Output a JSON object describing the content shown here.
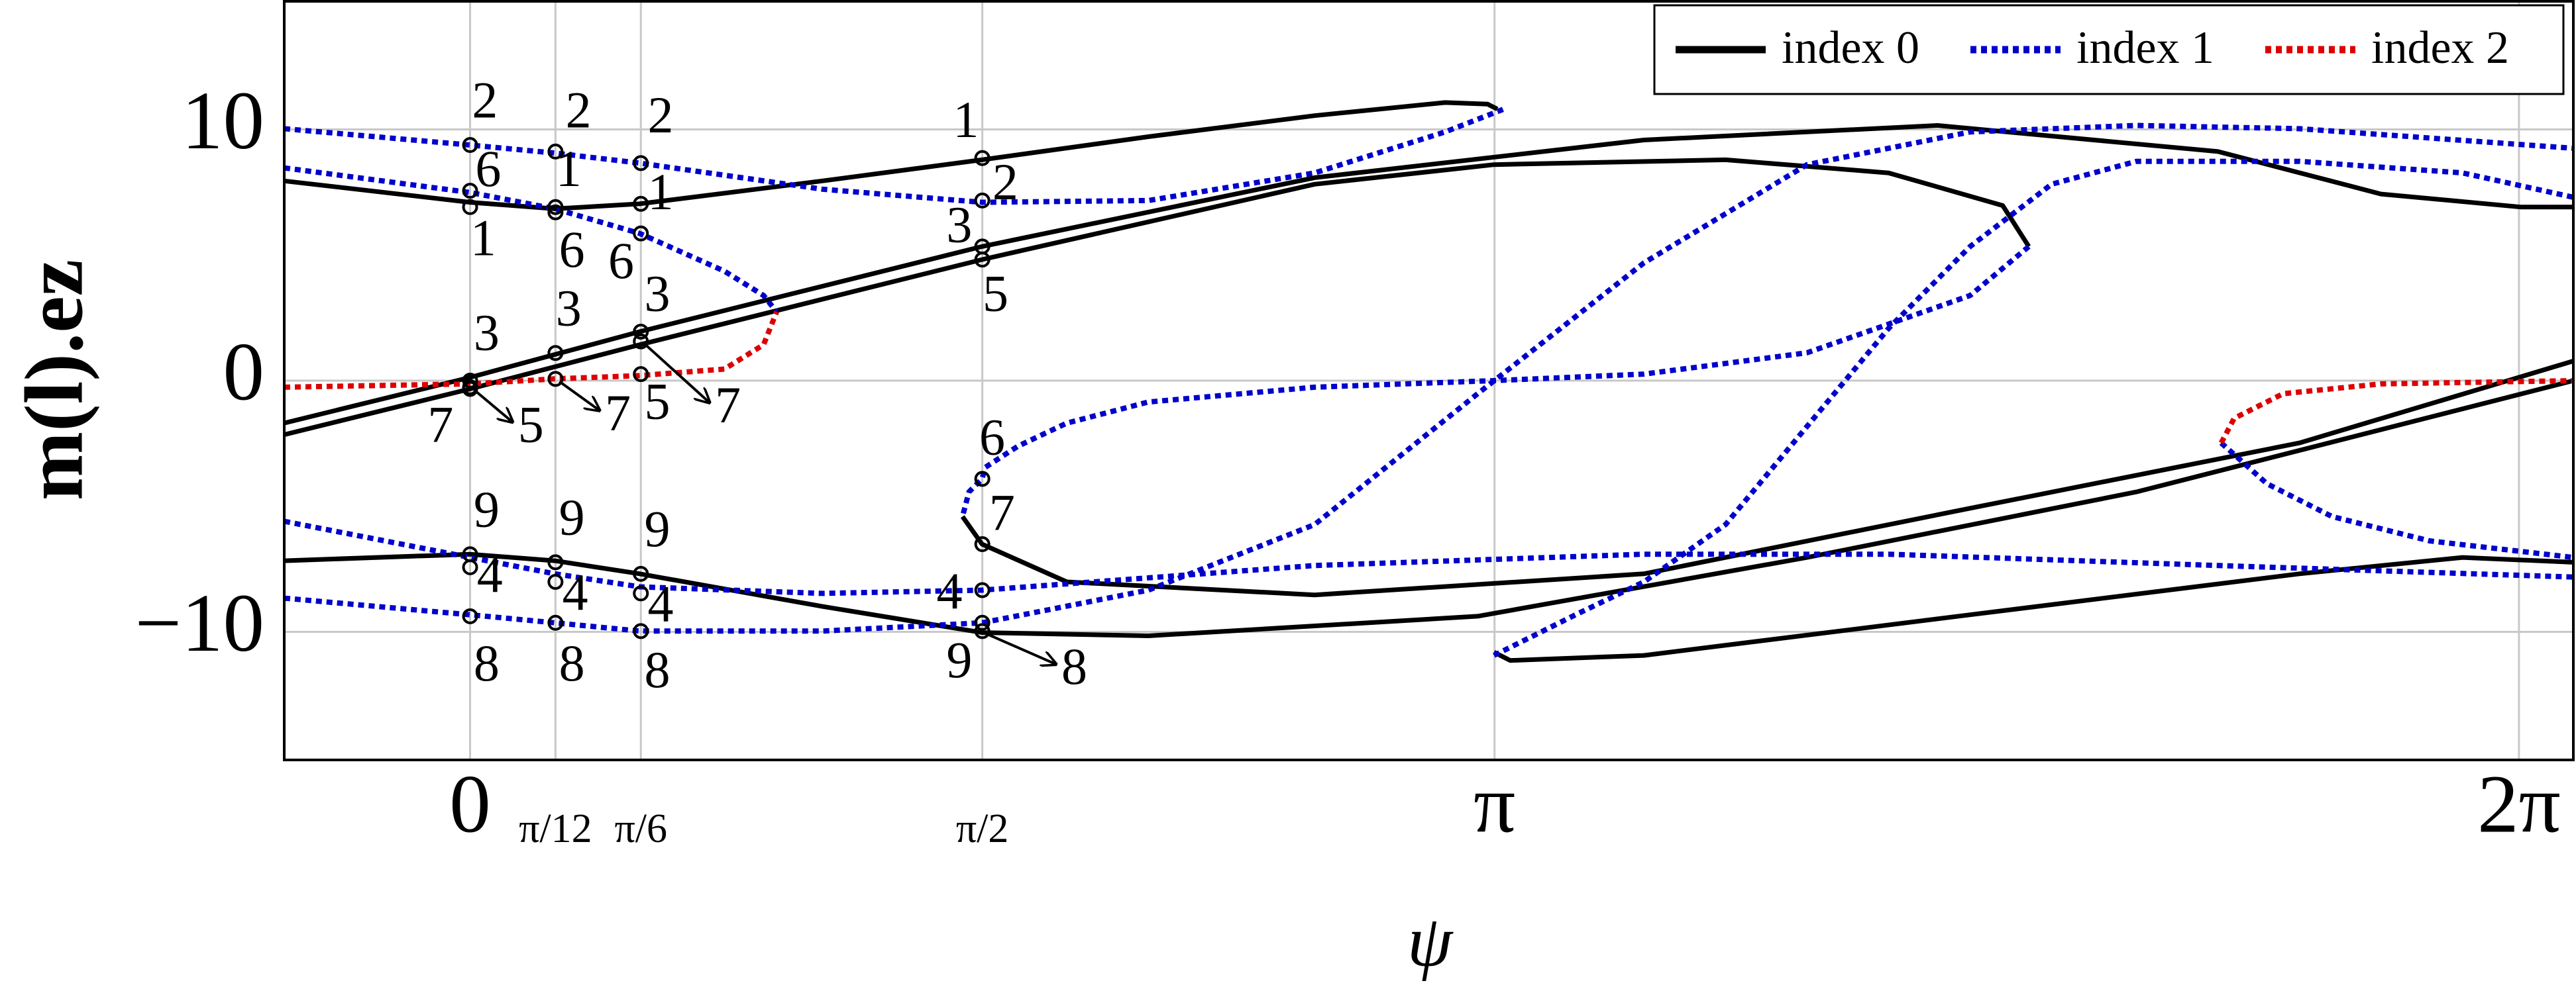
{
  "chart_data": {
    "type": "line",
    "xlabel": "ψ",
    "ylabel": "m(l).ez",
    "xlim": [
      -0.57,
      6.45
    ],
    "ylim": [
      -15.1,
      15.1
    ],
    "xticks": [
      0,
      {
        "value": 0.2618,
        "label": "π/12"
      },
      {
        "value": 0.5236,
        "label": "π/6"
      },
      {
        "value": 1.5708,
        "label": "π/2"
      },
      {
        "value": 3.1416,
        "label": "π"
      },
      {
        "value": 6.2832,
        "label": "2π"
      }
    ],
    "yticks": [
      {
        "value": -10,
        "label": "−10"
      },
      0,
      10
    ],
    "grid": true,
    "legend": "upper right",
    "series": [
      {
        "name": "index 0",
        "color": "#000000",
        "style": "solid",
        "curves": [
          {
            "x": [
              -0.57,
              0,
              0.26,
              0.52,
              1.08,
              1.57,
              2.08,
              2.59,
              2.99,
              3.12,
              3.15
            ],
            "values": [
              7.95,
              7.1,
              6.84,
              7.04,
              7.95,
              8.79,
              9.71,
              10.55,
              11.07,
              11.01,
              10.81
            ]
          },
          {
            "x": [
              -0.57,
              0,
              0.52,
              1.57,
              2.59,
              3.6,
              4.5,
              5.36,
              5.86,
              6.29,
              6.45
            ],
            "values": [
              -1.69,
              0.13,
              1.95,
              5.34,
              8.08,
              9.58,
              10.16,
              9.12,
              7.43,
              6.91,
              6.91
            ]
          },
          {
            "x": [
              -0.57,
              0,
              0.52,
              1.57,
              2.59,
              3.14,
              3.85,
              4.35,
              4.7,
              4.78
            ],
            "values": [
              -2.15,
              -0.33,
              1.43,
              4.82,
              7.82,
              8.6,
              8.79,
              8.27,
              6.97,
              5.34
            ]
          },
          {
            "x": [
              -0.57,
              0,
              0.26,
              0.52,
              1.08,
              1.57,
              2.08,
              3.09,
              4.1,
              5.11,
              6.45
            ],
            "values": [
              -7.17,
              -6.91,
              -7.17,
              -7.69,
              -8.99,
              -10.03,
              -10.16,
              -9.38,
              -7.04,
              -4.43,
              0
            ]
          },
          {
            "x": [
              1.51,
              1.57,
              1.83,
              2.59,
              3.6,
              4.6,
              5.61,
              6.45
            ],
            "values": [
              -5.41,
              -6.51,
              -8.01,
              -8.53,
              -7.69,
              -5.08,
              -2.48,
              0.78
            ]
          },
          {
            "x": [
              3.14,
              3.19,
              3.6,
              4.6,
              5.61,
              6.11,
              6.45
            ],
            "values": [
              -10.81,
              -11.14,
              -10.94,
              -9.32,
              -7.69,
              -7.04,
              -7.23
            ]
          }
        ]
      },
      {
        "name": "index 1",
        "color": "#0000cc",
        "style": "dotted",
        "curves": [
          {
            "x": [
              -0.57,
              0,
              0.26,
              0.52,
              1.08,
              1.57,
              2.08,
              2.59,
              2.99,
              3.17
            ],
            "values": [
              10.03,
              9.38,
              9.06,
              8.66,
              7.62,
              7.1,
              7.17,
              8.27,
              9.9,
              10.81
            ]
          },
          {
            "x": [
              -0.57,
              0,
              0.26,
              0.52,
              0.78,
              0.9,
              0.94
            ],
            "values": [
              8.47,
              7.49,
              6.84,
              5.86,
              4.36,
              3.39,
              2.74
            ]
          },
          {
            "x": [
              -0.57,
              0,
              0.26,
              0.52,
              1.08,
              1.57,
              2.59,
              3.6,
              4.35,
              5.36,
              6.45
            ],
            "values": [
              -5.6,
              -7.04,
              -7.69,
              -8.21,
              -8.47,
              -8.34,
              -7.36,
              -6.91,
              -6.91,
              -7.36,
              -7.82
            ]
          },
          {
            "x": [
              -0.57,
              0,
              0.26,
              0.52,
              1.08,
              1.57,
              2.08,
              2.59,
              3.09,
              3.6,
              4.1,
              4.6,
              5.11,
              5.61,
              6.45
            ],
            "values": [
              -8.66,
              -9.32,
              -9.64,
              -9.97,
              -9.97,
              -9.64,
              -8.34,
              -5.73,
              -0.52,
              4.69,
              8.6,
              9.9,
              10.16,
              10.03,
              9.25
            ]
          },
          {
            "x": [
              3.14,
              3.39,
              3.6,
              3.85,
              4.1,
              4.35,
              4.6,
              4.85,
              5.11,
              5.61,
              6.11,
              6.45
            ],
            "values": [
              -10.94,
              -9.32,
              -8.01,
              -5.73,
              -1.82,
              2.08,
              5.34,
              7.82,
              8.73,
              8.73,
              8.27,
              7.3
            ]
          },
          {
            "x": [
              4.78,
              4.6,
              4.1,
              3.6,
              3.14,
              2.59,
              2.08,
              1.83,
              1.68,
              1.58,
              1.57,
              1.53,
              1.51
            ],
            "values": [
              5.34,
              3.39,
              1.11,
              0.26,
              0,
              -0.26,
              -0.85,
              -1.69,
              -2.61,
              -3.45,
              -3.91,
              -4.43,
              -5.41
            ]
          },
          {
            "x": [
              5.37,
              5.51,
              5.71,
              6.01,
              6.45
            ],
            "values": [
              -2.48,
              -4.1,
              -5.41,
              -6.38,
              -7.04
            ]
          }
        ]
      },
      {
        "name": "index 2",
        "color": "#dd0000",
        "style": "dotted",
        "curves": [
          {
            "x": [
              -0.57,
              0,
              0.26,
              0.52,
              0.78,
              0.9,
              0.94
            ],
            "values": [
              -0.26,
              -0.13,
              0.07,
              0.2,
              0.46,
              1.43,
              2.74
            ]
          },
          {
            "x": [
              5.37,
              5.41,
              5.56,
              5.86,
              6.45
            ],
            "values": [
              -2.48,
              -1.5,
              -0.52,
              -0.13,
              0
            ]
          }
        ]
      }
    ],
    "points": [
      {
        "x": 0,
        "y": 9.38,
        "label": "2"
      },
      {
        "x": 0,
        "y": 7.56,
        "label": "6"
      },
      {
        "x": 0,
        "y": 6.91,
        "label": "1"
      },
      {
        "x": 0,
        "y": 0,
        "label": "3"
      },
      {
        "x": 0,
        "y": -0.33,
        "label": "7"
      },
      {
        "x": 0,
        "y": -0.26,
        "label": "5"
      },
      {
        "x": 0,
        "y": -6.91,
        "label": "9"
      },
      {
        "x": 0,
        "y": -7.43,
        "label": "4"
      },
      {
        "x": 0,
        "y": -9.38,
        "label": "8"
      },
      {
        "x": 0.2618,
        "y": 9.12,
        "label": "2"
      },
      {
        "x": 0.2618,
        "y": 6.91,
        "label": "1"
      },
      {
        "x": 0.2618,
        "y": 6.7,
        "label": "6"
      },
      {
        "x": 0.2618,
        "y": 1.1,
        "label": "3"
      },
      {
        "x": 0.2618,
        "y": 0.07,
        "label": "7"
      },
      {
        "x": 0.2618,
        "y": -7.23,
        "label": "9"
      },
      {
        "x": 0.2618,
        "y": -8.01,
        "label": "4"
      },
      {
        "x": 0.2618,
        "y": -9.64,
        "label": "8"
      },
      {
        "x": 0.5236,
        "y": 8.66,
        "label": "2"
      },
      {
        "x": 0.5236,
        "y": 7.04,
        "label": "1"
      },
      {
        "x": 0.5236,
        "y": 5.86,
        "label": "6"
      },
      {
        "x": 0.5236,
        "y": 1.95,
        "label": "3"
      },
      {
        "x": 0.5236,
        "y": 1.56,
        "label": "7"
      },
      {
        "x": 0.5236,
        "y": 0.26,
        "label": "5"
      },
      {
        "x": 0.5236,
        "y": -7.69,
        "label": "9"
      },
      {
        "x": 0.5236,
        "y": -8.47,
        "label": "4"
      },
      {
        "x": 0.5236,
        "y": -9.97,
        "label": "8"
      },
      {
        "x": 1.5708,
        "y": 8.86,
        "label": "1"
      },
      {
        "x": 1.5708,
        "y": 7.17,
        "label": "2"
      },
      {
        "x": 1.5708,
        "y": 5.34,
        "label": "3"
      },
      {
        "x": 1.5708,
        "y": 4.82,
        "label": "5"
      },
      {
        "x": 1.5708,
        "y": -3.91,
        "label": "6"
      },
      {
        "x": 1.5708,
        "y": -6.51,
        "label": "7"
      },
      {
        "x": 1.5708,
        "y": -8.34,
        "label": "4"
      },
      {
        "x": 1.5708,
        "y": -9.64,
        "label": "9"
      },
      {
        "x": 1.5708,
        "y": -9.97,
        "label": "8"
      }
    ]
  }
}
